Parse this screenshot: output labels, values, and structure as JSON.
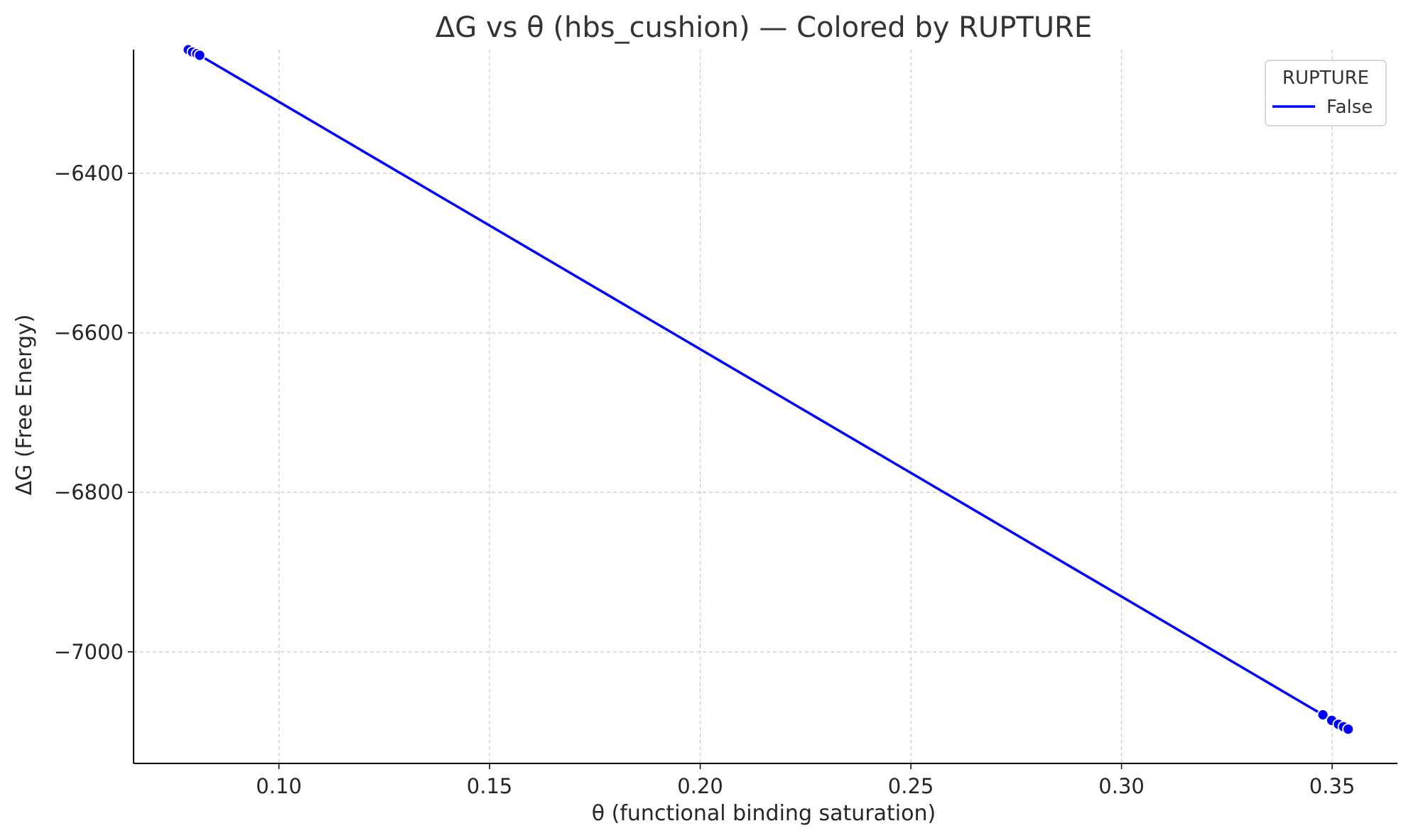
{
  "chart_data": {
    "type": "line",
    "title": "ΔG vs θ (hbs_cushion) — Colored by RUPTURE",
    "xlabel": "θ (functional binding saturation)",
    "ylabel": "ΔG (Free Energy)",
    "xlim": [
      0.0655,
      0.3655
    ],
    "ylim": [
      -7140,
      -6245
    ],
    "xticks": [
      0.1,
      0.15,
      0.2,
      0.25,
      0.3,
      0.35
    ],
    "xtick_labels": [
      "0.10",
      "0.15",
      "0.20",
      "0.25",
      "0.30",
      "0.35"
    ],
    "yticks": [
      -6400,
      -6600,
      -6800,
      -7000
    ],
    "ytick_labels": [
      "−6400",
      "−6600",
      "−6800",
      "−7000"
    ],
    "grid": true,
    "legend": {
      "title": "RUPTURE",
      "placement": "top-right"
    },
    "series": [
      {
        "name": "False",
        "color": "#0000ff",
        "x": [
          0.0785,
          0.0795,
          0.0805,
          0.0812,
          0.3478,
          0.3499,
          0.3515,
          0.3527,
          0.3538
        ],
        "y": [
          -6245,
          -6248,
          -6250,
          -6252,
          -7079,
          -7086,
          -7091,
          -7094,
          -7097
        ]
      }
    ]
  }
}
